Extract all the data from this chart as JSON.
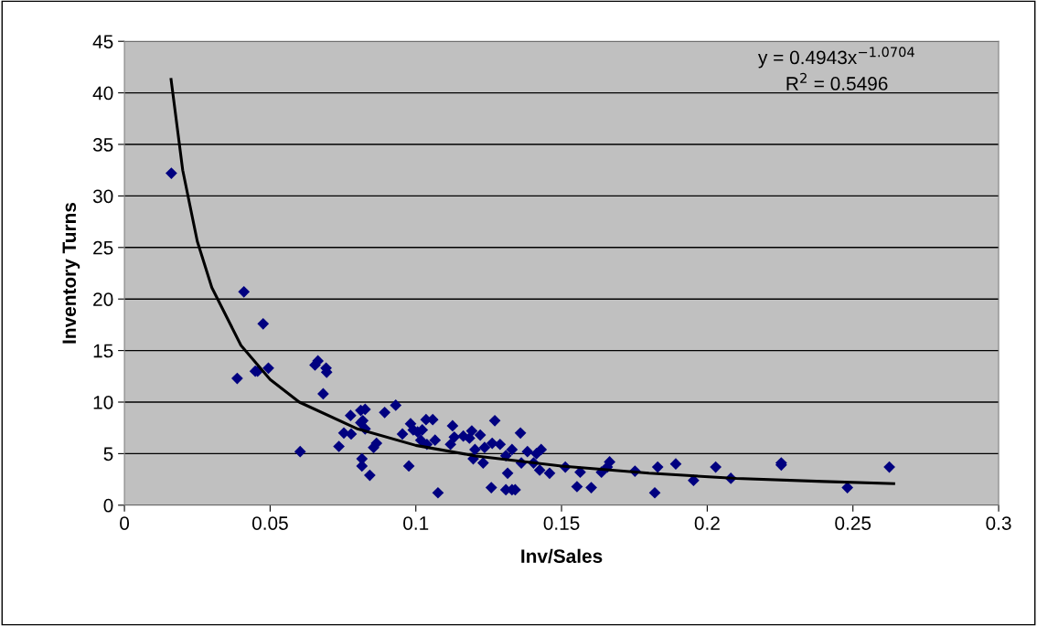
{
  "chart_data": {
    "type": "scatter",
    "xlabel": "Inv/Sales",
    "ylabel": "Inventory Turns",
    "xlim": [
      0,
      0.3
    ],
    "xticks": [
      0,
      0.05,
      0.1,
      0.15,
      0.2,
      0.25,
      0.3
    ],
    "ylim": [
      0,
      45
    ],
    "yticks": [
      0,
      5,
      10,
      15,
      20,
      25,
      30,
      35,
      40,
      45
    ],
    "grid": "y",
    "legend": false,
    "annotations": [
      "y = 0.4943x$^{−1.0704}$",
      "R$^{2}$ = 0.5496"
    ],
    "series": [
      {
        "color": "#000080",
        "marker": "diamond",
        "x": [
          0.0161,
          0.041,
          0.0476,
          0.0387,
          0.0449,
          0.0457,
          0.0494,
          0.0603,
          0.0664,
          0.0654,
          0.0692,
          0.0694,
          0.0682,
          0.0776,
          0.0811,
          0.0826,
          0.0818,
          0.0811,
          0.0826,
          0.0753,
          0.0778,
          0.0736,
          0.0865,
          0.0855,
          0.0815,
          0.0815,
          0.0842,
          0.0893,
          0.0931,
          0.0954,
          0.0982,
          0.0991,
          0.1022,
          0.1006,
          0.1035,
          0.1058,
          0.1017,
          0.1038,
          0.1066,
          0.0976,
          0.1076,
          0.1126,
          0.1132,
          0.1119,
          0.1163,
          0.1192,
          0.1184,
          0.1221,
          0.1203,
          0.1197,
          0.1231,
          0.1236,
          0.1262,
          0.1271,
          0.1289,
          0.1309,
          0.1315,
          0.1259,
          0.1309,
          0.133,
          0.1341,
          0.1359,
          0.133,
          0.1383,
          0.143,
          0.1414,
          0.1362,
          0.1404,
          0.1425,
          0.1459,
          0.1513,
          0.1564,
          0.1553,
          0.1602,
          0.1637,
          0.1665,
          0.1657,
          0.1752,
          0.183,
          0.182,
          0.1892,
          0.1953,
          0.2029,
          0.2081,
          0.2254,
          0.2254,
          0.2481,
          0.2625
        ],
        "values": [
          32.2,
          20.7,
          17.6,
          12.3,
          13.0,
          13.0,
          13.3,
          5.2,
          14.0,
          13.6,
          13.3,
          12.9,
          10.8,
          8.7,
          9.2,
          9.3,
          8.2,
          8.0,
          7.4,
          7.0,
          6.9,
          5.7,
          6.0,
          5.6,
          4.5,
          3.8,
          2.9,
          9.0,
          9.7,
          6.9,
          7.9,
          7.3,
          7.3,
          7.1,
          8.3,
          8.3,
          6.3,
          5.9,
          6.3,
          3.8,
          1.2,
          7.7,
          6.6,
          5.9,
          6.7,
          7.2,
          6.5,
          6.8,
          5.4,
          4.5,
          4.1,
          5.6,
          6.0,
          8.2,
          5.9,
          4.8,
          3.1,
          1.7,
          1.5,
          1.5,
          1.5,
          7.0,
          5.4,
          5.2,
          5.4,
          5.0,
          4.1,
          4.1,
          3.4,
          3.1,
          3.7,
          3.2,
          1.8,
          1.7,
          3.2,
          4.2,
          3.7,
          3.3,
          3.7,
          1.2,
          4.0,
          2.4,
          3.7,
          2.6,
          4.1,
          3.9,
          1.7,
          3.7
        ]
      },
      {
        "type": "line",
        "color": "#000000",
        "x": [
          0.016,
          0.02,
          0.025,
          0.03,
          0.04,
          0.05,
          0.06,
          0.08,
          0.1,
          0.12,
          0.15,
          0.18,
          0.21,
          0.24,
          0.264
        ],
        "values": [
          41.3,
          32.5,
          25.6,
          21.1,
          15.5,
          12.2,
          10.0,
          7.4,
          5.8,
          4.8,
          3.8,
          3.1,
          2.6,
          2.3,
          2.1
        ]
      }
    ]
  }
}
